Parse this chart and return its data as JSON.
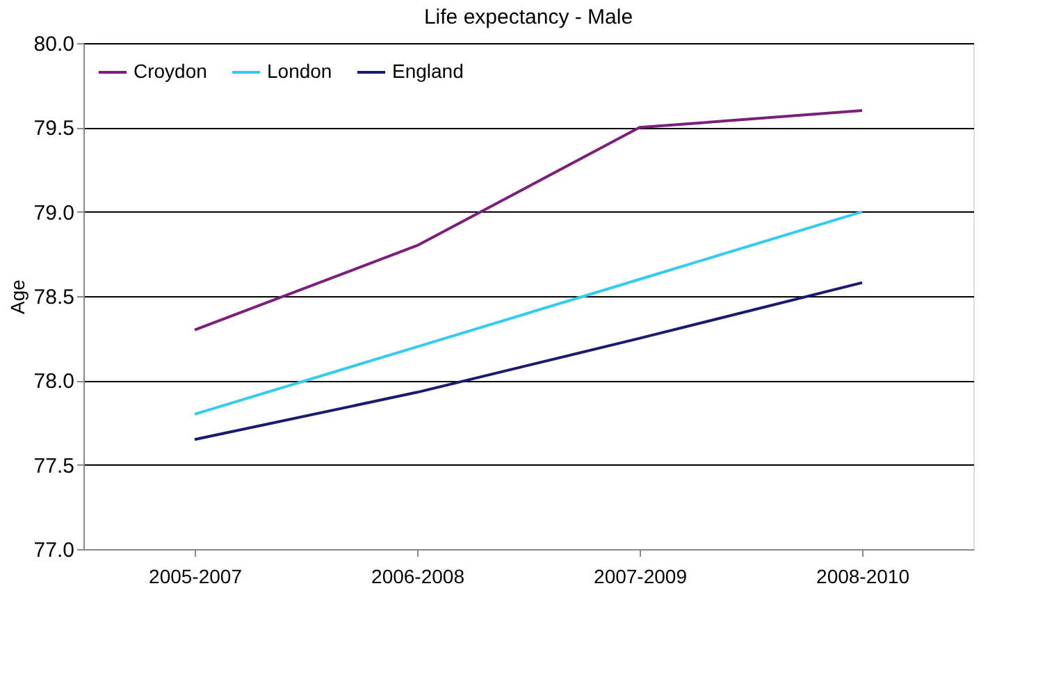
{
  "chart_data": {
    "type": "line",
    "title": "Life expectancy - Male",
    "ylabel": "Age",
    "categories": [
      "2005-2007",
      "2006-2008",
      "2007-2009",
      "2008-2010"
    ],
    "series": [
      {
        "name": "Croydon",
        "color": "#7b1f7b",
        "values": [
          78.3,
          78.8,
          79.5,
          79.6
        ]
      },
      {
        "name": "London",
        "color": "#33ccee",
        "values": [
          77.8,
          78.2,
          78.6,
          79.0
        ]
      },
      {
        "name": "England",
        "color": "#1a1a6e",
        "values": [
          77.65,
          77.93,
          78.25,
          78.58
        ]
      }
    ],
    "ylim": [
      77.0,
      80.0
    ],
    "yticks": [
      {
        "value": 77.0,
        "label": "77.0"
      },
      {
        "value": 77.5,
        "label": "77.5"
      },
      {
        "value": 78.0,
        "label": "78.0"
      },
      {
        "value": 78.5,
        "label": "78.5"
      },
      {
        "value": 79.0,
        "label": "79.0"
      },
      {
        "value": 79.5,
        "label": "79.5"
      },
      {
        "value": 80.0,
        "label": "80.0"
      }
    ],
    "grid": "y",
    "legend": "top left",
    "marker": "none",
    "line_style": "solid"
  }
}
